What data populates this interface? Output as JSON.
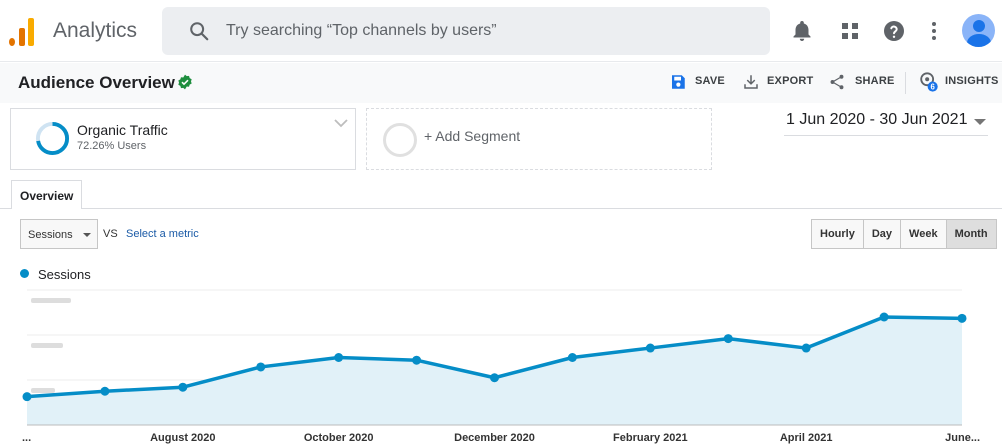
{
  "app": {
    "title": "Analytics"
  },
  "search": {
    "placeholder": "Try searching “Top channels by users”"
  },
  "header_icons": [
    "bell-icon",
    "apps-grid-icon",
    "help-icon",
    "more-vert-icon",
    "account-avatar"
  ],
  "page": {
    "title": "Audience Overview",
    "actions": {
      "save": "SAVE",
      "export": "EXPORT",
      "share": "SHARE",
      "insights": "INSIGHTS",
      "insights_badge": "6"
    }
  },
  "segments": {
    "primary": {
      "name": "Organic Traffic",
      "subtitle": "72.26% Users",
      "share": 0.7226
    },
    "add_label": "+ Add Segment"
  },
  "date_range": "1 Jun 2020 - 30 Jun 2021",
  "tabs": [
    "Overview"
  ],
  "controls": {
    "metric": "Sessions",
    "vs": "VS",
    "select_metric": "Select a metric",
    "granularity": [
      "Hourly",
      "Day",
      "Week",
      "Month"
    ],
    "granularity_selected": "Month"
  },
  "colors": {
    "series": "#058dc7",
    "area": "#e1f1f8",
    "accent": "#1a73e8",
    "verified": "#1e8e3e"
  },
  "chart_data": {
    "type": "area",
    "x": [
      "Jun 2020",
      "Jul 2020",
      "Aug 2020",
      "Sep 2020",
      "Oct 2020",
      "Nov 2020",
      "Dec 2020",
      "Jan 2021",
      "Feb 2021",
      "Mar 2021",
      "Apr 2021",
      "May 2021",
      "Jun 2021"
    ],
    "series": [
      {
        "name": "Sessions",
        "values": [
          0.21,
          0.25,
          0.28,
          0.43,
          0.5,
          0.48,
          0.35,
          0.5,
          0.57,
          0.64,
          0.57,
          0.8,
          0.79
        ]
      }
    ],
    "value_scale": "relative (axis values blurred)",
    "y_tick_count": 3,
    "xtick_labels": [
      "...",
      "August 2020",
      "October 2020",
      "December 2020",
      "February 2021",
      "April 2021",
      "June..."
    ],
    "xtick_positions": [
      0,
      2,
      4,
      6,
      8,
      10,
      12
    ],
    "ylim": [
      0,
      1
    ],
    "grid": true
  }
}
